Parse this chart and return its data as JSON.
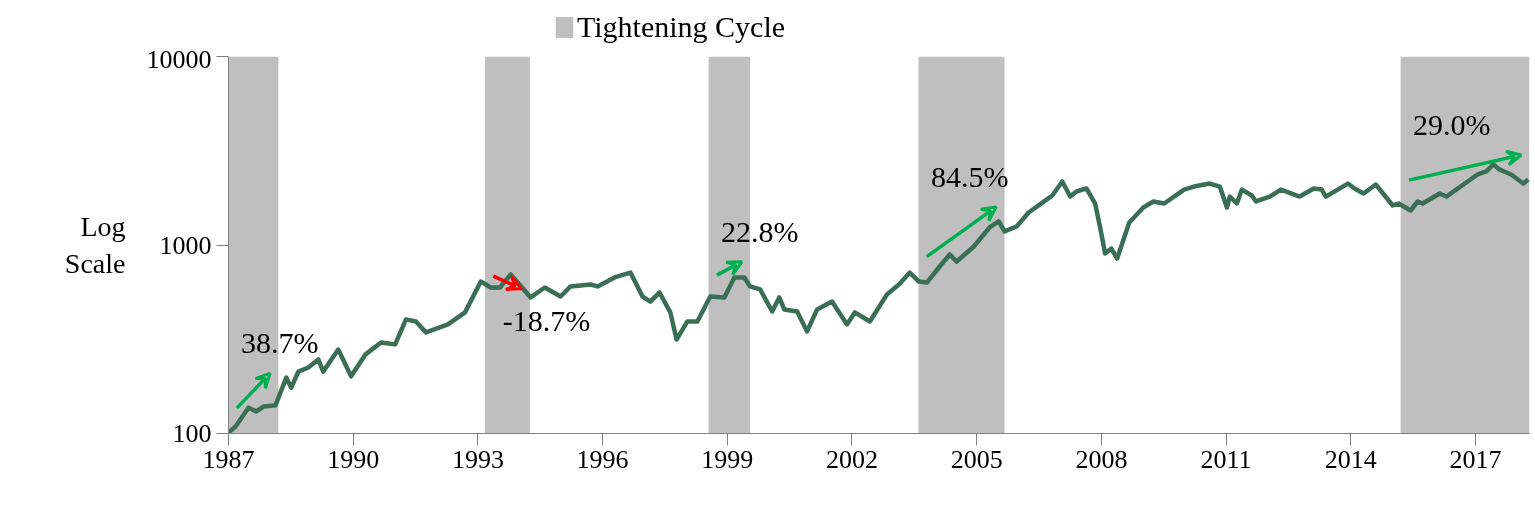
{
  "chart_data": {
    "type": "line",
    "ylabel": "Log Scale",
    "log": "y",
    "grid": false,
    "legend": "top",
    "line_style": "solid",
    "marker": "none",
    "xlim": [
      1987,
      2018.3
    ],
    "xticks": [
      1987,
      1990,
      1993,
      1996,
      1999,
      2002,
      2005,
      2008,
      2011,
      2014,
      2017
    ],
    "ylim": [
      100,
      10000
    ],
    "yticks": [
      100,
      1000,
      10000
    ],
    "series": [
      {
        "color": "#3a6f55",
        "x": [
          1987.0,
          1987.17,
          1987.48,
          1987.67,
          1987.84,
          1988.13,
          1988.39,
          1988.51,
          1988.68,
          1988.92,
          1989.16,
          1989.28,
          1989.64,
          1989.95,
          1990.29,
          1990.67,
          1991.01,
          1991.27,
          1991.51,
          1991.75,
          1992.28,
          1992.69,
          1993.07,
          1993.31,
          1993.53,
          1993.79,
          1994.27,
          1994.61,
          1994.99,
          1995.23,
          1995.71,
          1995.88,
          1996.29,
          1996.67,
          1996.96,
          1997.15,
          1997.37,
          1997.63,
          1997.78,
          1998.04,
          1998.28,
          1998.59,
          1998.93,
          1999.17,
          1999.41,
          1999.55,
          1999.79,
          2000.08,
          2000.25,
          2000.37,
          2000.68,
          2000.92,
          2001.16,
          2001.52,
          2001.88,
          2002.07,
          2002.43,
          2002.84,
          2003.13,
          2003.39,
          2003.61,
          2003.8,
          2004.11,
          2004.35,
          2004.52,
          2004.93,
          2005.31,
          2005.53,
          2005.67,
          2005.96,
          2006.25,
          2006.68,
          2006.82,
          2007.06,
          2007.25,
          2007.4,
          2007.64,
          2007.85,
          2007.97,
          2008.09,
          2008.24,
          2008.38,
          2008.67,
          2009.01,
          2009.25,
          2009.51,
          2009.99,
          2010.23,
          2010.61,
          2010.85,
          2011.02,
          2011.09,
          2011.26,
          2011.38,
          2011.62,
          2011.72,
          2012.05,
          2012.32,
          2012.77,
          2013.11,
          2013.3,
          2013.4,
          2013.93,
          2014.09,
          2014.31,
          2014.6,
          2015.01,
          2015.15,
          2015.44,
          2015.61,
          2015.73,
          2016.14,
          2016.3,
          2016.71,
          2017.05,
          2017.26,
          2017.43,
          2017.57,
          2017.86,
          2018.15,
          2018.27
        ],
        "values": [
          101,
          109,
          137,
          131,
          139,
          141,
          198,
          175,
          213,
          224,
          247,
          213,
          279,
          201,
          262,
          304,
          297,
          403,
          393,
          344,
          379,
          439,
          640,
          595,
          595,
          698,
          527,
          595,
          533,
          603,
          617,
          603,
          673,
          714,
          533,
          501,
          560,
          439,
          315,
          393,
          393,
          533,
          527,
          673,
          673,
          603,
          581,
          444,
          527,
          455,
          444,
          348,
          455,
          501,
          379,
          439,
          393,
          546,
          617,
          714,
          640,
          632,
          769,
          891,
          817,
          982,
          1239,
          1333,
          1180,
          1253,
          1487,
          1742,
          1831,
          2173,
          1807,
          1922,
          1995,
          1660,
          1239,
          901,
          958,
          848,
          1316,
          1581,
          1702,
          1660,
          1968,
          2042,
          2118,
          2042,
          1581,
          1807,
          1660,
          1968,
          1831,
          1702,
          1807,
          1968,
          1807,
          1995,
          1968,
          1807,
          2118,
          1995,
          1877,
          2094,
          1621,
          1660,
          1524,
          1702,
          1660,
          1877,
          1807,
          2094,
          2366,
          2455,
          2673,
          2518,
          2366,
          2118,
          2224
        ]
      }
    ],
    "bands": [
      {
        "axis": "x",
        "from": 1987.0,
        "to": 1988.2,
        "label": "Tightening Cycle",
        "color": "#bfbfbf"
      },
      {
        "axis": "x",
        "from": 1993.17,
        "to": 1994.25,
        "color": "#bfbfbf"
      },
      {
        "axis": "x",
        "from": 1998.55,
        "to": 1999.55,
        "color": "#bfbfbf"
      },
      {
        "axis": "x",
        "from": 2003.6,
        "to": 2005.67,
        "color": "#bfbfbf"
      },
      {
        "axis": "x",
        "from": 2015.2,
        "to": 2018.3,
        "color": "#bfbfbf"
      }
    ],
    "annotations": [
      "38.7%",
      "-18.7%",
      "22.8%",
      "84.5%",
      "29.0%"
    ]
  }
}
